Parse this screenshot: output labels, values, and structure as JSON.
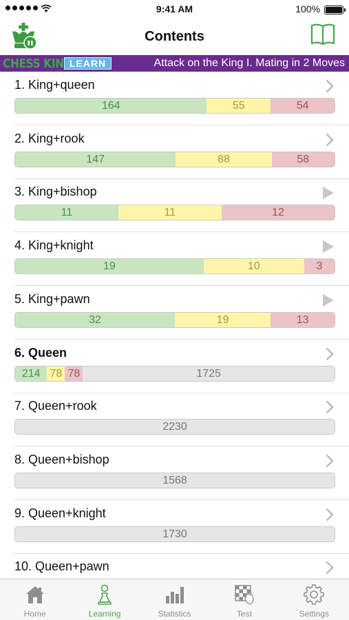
{
  "status_bar": {
    "time": "9:41 AM",
    "battery": "100%"
  },
  "nav": {
    "title": "Contents",
    "left_icon": "chess-king-logo-icon",
    "right_icon": "book-icon"
  },
  "banner": {
    "brand": "CHESS KING",
    "badge": "LEARN",
    "subtitle": "Attack on the King I. Mating in 2 Moves"
  },
  "colors": {
    "green": "#c8e5c0",
    "yellow": "#fdf6a8",
    "red": "#ebc4c8",
    "gray": "#e6e6e6",
    "banner": "#6a2b90",
    "accent": "#4aa648"
  },
  "rows": [
    {
      "title": "1. King+queen",
      "indicator": "chevron",
      "bold": false,
      "segments": [
        {
          "color": "green",
          "value": "164",
          "frac": 0.6
        },
        {
          "color": "yellow",
          "value": "55",
          "frac": 0.2
        },
        {
          "color": "red",
          "value": "54",
          "frac": 0.2
        }
      ]
    },
    {
      "title": "2. King+rook",
      "indicator": "chevron",
      "bold": false,
      "segments": [
        {
          "color": "green",
          "value": "147",
          "frac": 0.503
        },
        {
          "color": "yellow",
          "value": "88",
          "frac": 0.3
        },
        {
          "color": "red",
          "value": "58",
          "frac": 0.197
        }
      ]
    },
    {
      "title": "3. King+bishop",
      "indicator": "play",
      "bold": false,
      "segments": [
        {
          "color": "green",
          "value": "11",
          "frac": 0.323
        },
        {
          "color": "yellow",
          "value": "11",
          "frac": 0.323
        },
        {
          "color": "red",
          "value": "12",
          "frac": 0.354
        }
      ]
    },
    {
      "title": "4. King+knight",
      "indicator": "play",
      "bold": false,
      "segments": [
        {
          "color": "green",
          "value": "19",
          "frac": 0.59
        },
        {
          "color": "yellow",
          "value": "10",
          "frac": 0.315
        },
        {
          "color": "red",
          "value": "3",
          "frac": 0.095
        }
      ]
    },
    {
      "title": "5. King+pawn",
      "indicator": "play",
      "bold": false,
      "segments": [
        {
          "color": "green",
          "value": "32",
          "frac": 0.5
        },
        {
          "color": "yellow",
          "value": "19",
          "frac": 0.3
        },
        {
          "color": "red",
          "value": "13",
          "frac": 0.2
        }
      ]
    },
    {
      "title": "6. Queen",
      "indicator": "chevron",
      "bold": true,
      "segments": [
        {
          "color": "green",
          "value": "214",
          "frac": 0.1
        },
        {
          "color": "yellow",
          "value": "78",
          "frac": 0.056
        },
        {
          "color": "red",
          "value": "78",
          "frac": 0.056
        },
        {
          "color": "gray",
          "value": "1725"
        }
      ]
    },
    {
      "title": "7. Queen+rook",
      "indicator": "chevron",
      "bold": false,
      "segments": [
        {
          "color": "gray",
          "value": "2230"
        }
      ]
    },
    {
      "title": "8. Queen+bishop",
      "indicator": "chevron",
      "bold": false,
      "segments": [
        {
          "color": "gray",
          "value": "1568"
        }
      ]
    },
    {
      "title": "9. Queen+knight",
      "indicator": "chevron",
      "bold": false,
      "segments": [
        {
          "color": "gray",
          "value": "1730"
        }
      ]
    },
    {
      "title": "10. Queen+pawn",
      "indicator": "chevron",
      "bold": false,
      "segments": []
    }
  ],
  "tabs": [
    {
      "label": "Home",
      "icon": "home-icon",
      "active": false
    },
    {
      "label": "Learning",
      "icon": "pawn-icon",
      "active": true
    },
    {
      "label": "Statistics",
      "icon": "bar-chart-icon",
      "active": false
    },
    {
      "label": "Test",
      "icon": "chessboard-hand-icon",
      "active": false
    },
    {
      "label": "Settings",
      "icon": "gear-icon",
      "active": false
    }
  ]
}
